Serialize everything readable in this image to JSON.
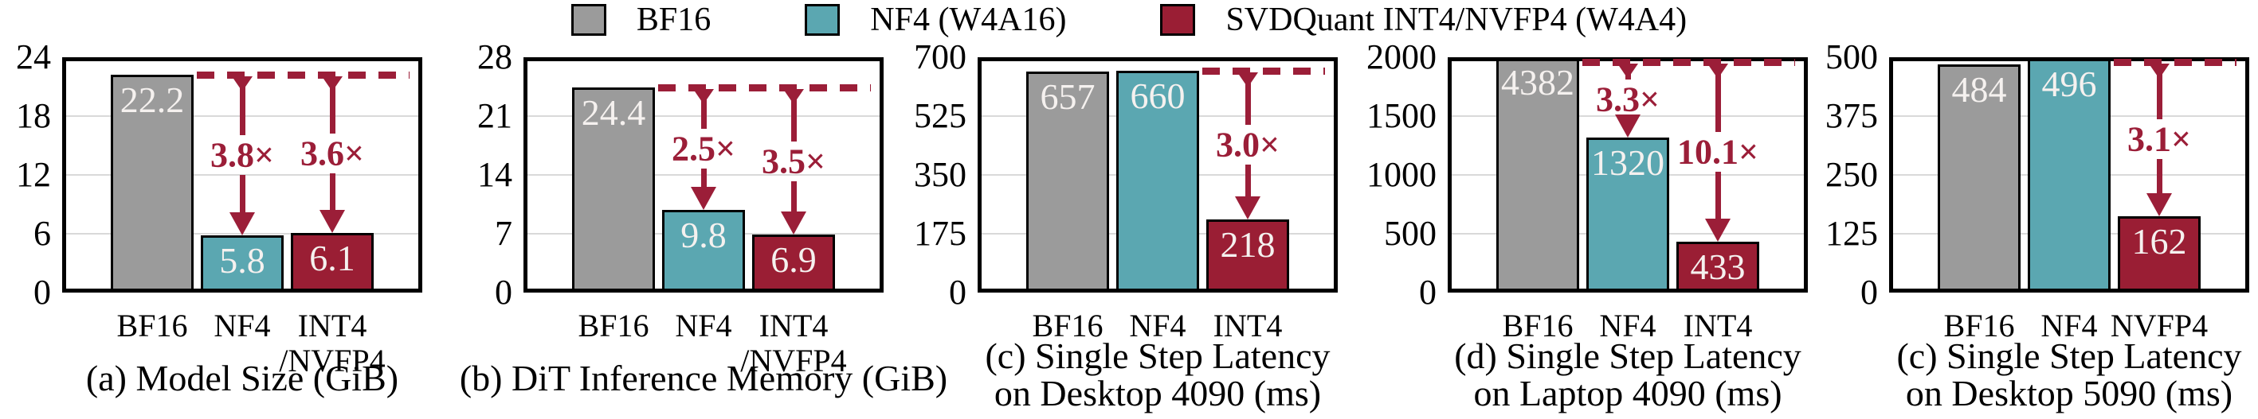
{
  "colors": {
    "bf16": "#9B9B9B",
    "nf4": "#5BA7B1",
    "svdquant": "#9A1E34",
    "bar_border": "#000000",
    "plot_border": "#000000",
    "gridline": "#D9D9D9",
    "value_text": "#F5F1EF",
    "annotation": "#9B1E38",
    "axis_text": "#000000"
  },
  "legend": {
    "items": [
      {
        "label": "BF16",
        "color_key": "bf16"
      },
      {
        "label": "NF4 (W4A16)",
        "color_key": "nf4"
      },
      {
        "label": "SVDQuant INT4/NVFP4 (W4A4)",
        "color_key": "svdquant"
      }
    ]
  },
  "chart_data": [
    {
      "type": "bar",
      "title": "(a) Model Size (GiB)",
      "caption_lines": [
        "(a) Model Size (GiB)"
      ],
      "categories": [
        "BF16",
        "NF4",
        "INT4\n/NVFP4"
      ],
      "values": [
        22.2,
        5.8,
        6.1
      ],
      "value_labels": [
        "22.2",
        "5.8",
        "6.1"
      ],
      "bar_color_keys": [
        "bf16",
        "nf4",
        "svdquant"
      ],
      "ylim": [
        0,
        24
      ],
      "yticks": [
        0,
        6,
        12,
        18,
        24
      ],
      "grid": true,
      "legend_position": "top",
      "dash_line": {
        "level": 22.2,
        "starts_after_bar": 0
      },
      "arrows": [
        {
          "target_bar": 1,
          "label": "3.8×"
        },
        {
          "target_bar": 2,
          "label": "3.6×"
        }
      ]
    },
    {
      "type": "bar",
      "title": "(b) DiT Inference Memory (GiB)",
      "caption_lines": [
        "(b) DiT Inference Memory (GiB)"
      ],
      "categories": [
        "BF16",
        "NF4",
        "INT4\n/NVFP4"
      ],
      "values": [
        24.4,
        9.8,
        6.9
      ],
      "value_labels": [
        "24.4",
        "9.8",
        "6.9"
      ],
      "bar_color_keys": [
        "bf16",
        "nf4",
        "svdquant"
      ],
      "ylim": [
        0,
        28
      ],
      "yticks": [
        0,
        7,
        14,
        21,
        28
      ],
      "grid": true,
      "legend_position": "top",
      "dash_line": {
        "level": 24.4,
        "starts_after_bar": 0
      },
      "arrows": [
        {
          "target_bar": 1,
          "label": "2.5×"
        },
        {
          "target_bar": 2,
          "label": "3.5×"
        }
      ]
    },
    {
      "type": "bar",
      "title": "(c) Single Step Latency on Desktop 4090 (ms)",
      "caption_lines": [
        "(c) Single Step Latency",
        "on Desktop 4090 (ms)"
      ],
      "categories": [
        "BF16",
        "NF4",
        "INT4"
      ],
      "values": [
        657,
        660,
        218
      ],
      "value_labels": [
        "657",
        "660",
        "218"
      ],
      "bar_color_keys": [
        "bf16",
        "nf4",
        "svdquant"
      ],
      "ylim": [
        0,
        700
      ],
      "yticks": [
        0,
        175,
        350,
        525,
        700
      ],
      "grid": true,
      "legend_position": "top",
      "dash_line": {
        "level": 660,
        "starts_after_bar": 1
      },
      "arrows": [
        {
          "target_bar": 2,
          "label": "3.0×"
        }
      ]
    },
    {
      "type": "bar",
      "title": "(d) Single Step Latency on Laptop 4090 (ms)",
      "caption_lines": [
        "(d) Single Step Latency",
        "on Laptop 4090 (ms)"
      ],
      "categories": [
        "BF16",
        "NF4",
        "INT4"
      ],
      "values": [
        4382,
        1320,
        433
      ],
      "value_labels": [
        "4382",
        "1320",
        "433"
      ],
      "bar_color_keys": [
        "bf16",
        "nf4",
        "svdquant"
      ],
      "ylim": [
        0,
        2000
      ],
      "yticks": [
        0,
        500,
        1000,
        1500,
        2000
      ],
      "grid": true,
      "legend_position": "top",
      "dash_line": {
        "level": 4382,
        "starts_after_bar": 0
      },
      "arrows": [
        {
          "target_bar": 1,
          "label": "3.3×"
        },
        {
          "target_bar": 2,
          "label": "10.1×"
        }
      ]
    },
    {
      "type": "bar",
      "title": "(c) Single Step Latency on Desktop 5090 (ms)",
      "caption_lines": [
        "(c) Single Step Latency",
        "on Desktop 5090 (ms)"
      ],
      "categories": [
        "BF16",
        "NF4",
        "NVFP4"
      ],
      "values": [
        484,
        496,
        162
      ],
      "value_labels": [
        "484",
        "496",
        "162"
      ],
      "bar_color_keys": [
        "bf16",
        "nf4",
        "svdquant"
      ],
      "ylim": [
        0,
        500
      ],
      "yticks": [
        0,
        125,
        250,
        375,
        500
      ],
      "grid": true,
      "legend_position": "top",
      "dash_line": {
        "level": 496,
        "starts_after_bar": 1
      },
      "arrows": [
        {
          "target_bar": 2,
          "label": "3.1×"
        }
      ]
    }
  ]
}
